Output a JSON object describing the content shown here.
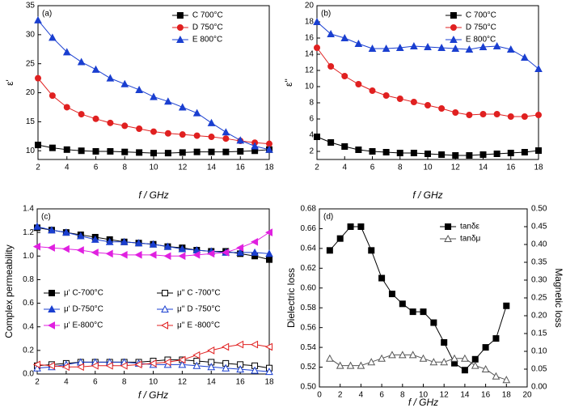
{
  "chart_data": [
    {
      "type": "line",
      "title": "(a)",
      "x_label": "f / GHz",
      "y_label": "ε'",
      "legend": "upper right",
      "x": [
        2,
        3,
        4,
        5,
        6,
        7,
        8,
        9,
        10,
        11,
        12,
        13,
        14,
        15,
        16,
        17,
        18
      ],
      "xlim": [
        2,
        18
      ],
      "xticks": [
        2,
        4,
        6,
        8,
        10,
        12,
        14,
        16,
        18
      ],
      "ylim": [
        8.5,
        35
      ],
      "yticks": [
        10,
        15,
        20,
        25,
        30,
        35
      ],
      "series": [
        {
          "name": "C  700°C",
          "color": "#000000",
          "marker": "square",
          "filled": true,
          "values": [
            11,
            10.5,
            10.2,
            10,
            9.9,
            9.9,
            9.8,
            9.7,
            9.6,
            9.6,
            9.7,
            9.8,
            9.8,
            9.8,
            9.9,
            10,
            10.2
          ]
        },
        {
          "name": "D  750°C",
          "color": "#e02020",
          "marker": "circle",
          "filled": true,
          "values": [
            22.5,
            19.5,
            17.5,
            16.3,
            15.5,
            14.8,
            14.3,
            13.8,
            13.3,
            13,
            12.8,
            12.6,
            12.4,
            12.1,
            11.7,
            11.4,
            11.2
          ]
        },
        {
          "name": "E  800°C",
          "color": "#1a3fd0",
          "marker": "triangle",
          "filled": true,
          "values": [
            32.5,
            29.5,
            27,
            25.3,
            24,
            22.5,
            21.5,
            20.5,
            19.3,
            18.5,
            17.5,
            16.5,
            14.8,
            13.2,
            11.8,
            10.8,
            10.2
          ]
        }
      ]
    },
    {
      "type": "line",
      "title": "(b)",
      "x_label": "f / GHz",
      "y_label": "ε''",
      "legend": "upper right",
      "x": [
        2,
        3,
        4,
        5,
        6,
        7,
        8,
        9,
        10,
        11,
        12,
        13,
        14,
        15,
        16,
        17,
        18
      ],
      "xlim": [
        2,
        18
      ],
      "xticks": [
        2,
        4,
        6,
        8,
        10,
        12,
        14,
        16,
        18
      ],
      "ylim": [
        1,
        20
      ],
      "yticks": [
        2,
        4,
        6,
        8,
        10,
        12,
        14,
        16,
        18,
        20
      ],
      "series": [
        {
          "name": "C  700°C",
          "color": "#000000",
          "marker": "square",
          "filled": true,
          "values": [
            3.8,
            3.1,
            2.6,
            2.2,
            2,
            1.9,
            1.8,
            1.8,
            1.7,
            1.6,
            1.5,
            1.5,
            1.6,
            1.7,
            1.8,
            1.9,
            2.1
          ]
        },
        {
          "name": "D  750°C",
          "color": "#e02020",
          "marker": "circle",
          "filled": true,
          "values": [
            14.8,
            12.5,
            11.3,
            10.3,
            9.5,
            8.9,
            8.5,
            8.1,
            7.7,
            7.3,
            6.8,
            6.5,
            6.6,
            6.6,
            6.3,
            6.3,
            6.5
          ]
        },
        {
          "name": "E  800°C",
          "color": "#1a3fd0",
          "marker": "triangle",
          "filled": true,
          "values": [
            18,
            16.5,
            16,
            15.3,
            14.7,
            14.7,
            14.8,
            15,
            14.9,
            14.8,
            14.7,
            14.6,
            14.9,
            15,
            14.6,
            13.6,
            12.2
          ]
        }
      ]
    },
    {
      "type": "line",
      "title": "(c)",
      "x_label": "f / GHz",
      "y_label": "Complex permeability",
      "legend": "lower left",
      "x": [
        2,
        3,
        4,
        5,
        6,
        7,
        8,
        9,
        10,
        11,
        12,
        13,
        14,
        15,
        16,
        17,
        18
      ],
      "xlim": [
        2,
        18
      ],
      "xticks": [
        2,
        4,
        6,
        8,
        10,
        12,
        14,
        16,
        18
      ],
      "ylim": [
        0,
        1.4
      ],
      "yticks": [
        {
          "value": 0,
          "label": "0.0"
        },
        {
          "value": 0.2,
          "label": "0.2"
        },
        {
          "value": 0.4,
          "label": "0.4"
        },
        {
          "value": 0.6,
          "label": "0.6"
        },
        {
          "value": 0.8,
          "label": "0.8"
        },
        {
          "value": 1,
          "label": "1.0"
        },
        {
          "value": 1.2,
          "label": "1.2"
        },
        {
          "value": 1.4,
          "label": "1.4"
        }
      ],
      "series": [
        {
          "name": "μ' C-700°C",
          "color": "#000000",
          "marker": "square",
          "filled": true,
          "values": [
            1.24,
            1.22,
            1.2,
            1.18,
            1.16,
            1.14,
            1.12,
            1.11,
            1.1,
            1.08,
            1.07,
            1.05,
            1.04,
            1.04,
            1.02,
            1,
            0.97
          ]
        },
        {
          "name": "μ' D-750°C",
          "color": "#1a3fd0",
          "marker": "triangle",
          "filled": true,
          "values": [
            1.25,
            1.22,
            1.2,
            1.17,
            1.14,
            1.12,
            1.12,
            1.11,
            1.1,
            1.08,
            1.06,
            1.05,
            1.04,
            1.03,
            1.03,
            1.03,
            1.02
          ]
        },
        {
          "name": "μ' E-800°C",
          "color": "#e020e0",
          "marker": "left",
          "filled": true,
          "values": [
            1.08,
            1.07,
            1.06,
            1.05,
            1.03,
            1.02,
            1.01,
            1.01,
            1.01,
            1,
            1,
            1.01,
            1.02,
            1.03,
            1.07,
            1.12,
            1.2
          ]
        },
        {
          "name": "μ'' C -700°C",
          "color": "#000000",
          "marker": "square",
          "filled": false,
          "values": [
            0.07,
            0.08,
            0.09,
            0.1,
            0.1,
            0.1,
            0.1,
            0.1,
            0.11,
            0.12,
            0.12,
            0.11,
            0.1,
            0.09,
            0.08,
            0.07,
            0.05
          ]
        },
        {
          "name": "μ'' D -750°C",
          "color": "#1a3fd0",
          "marker": "triangle",
          "filled": false,
          "values": [
            0.05,
            0.06,
            0.08,
            0.1,
            0.1,
            0.1,
            0.1,
            0.09,
            0.08,
            0.08,
            0.08,
            0.07,
            0.06,
            0.05,
            0.04,
            0.03,
            0.02
          ]
        },
        {
          "name": "μ'' E -800°C",
          "color": "#e02020",
          "marker": "left",
          "filled": false,
          "values": [
            0.08,
            0.07,
            0.06,
            0.06,
            0.07,
            0.07,
            0.07,
            0.08,
            0.09,
            0.1,
            0.12,
            0.16,
            0.2,
            0.23,
            0.25,
            0.25,
            0.23
          ]
        }
      ]
    },
    {
      "type": "line",
      "title": "(d)",
      "x_label": "f / GHz",
      "y_label": "Dielectric loss",
      "y2_label": "Magnetic loss",
      "legend": "upper right",
      "x": [
        1,
        2,
        3,
        4,
        5,
        6,
        7,
        8,
        9,
        10,
        11,
        12,
        13,
        14,
        15,
        16,
        17,
        18
      ],
      "xlim": [
        0,
        20
      ],
      "xticks": [
        0,
        2,
        4,
        6,
        8,
        10,
        12,
        14,
        16,
        18,
        20
      ],
      "ylim": [
        0.5,
        0.68
      ],
      "yticks": [
        {
          "value": 0.5,
          "label": "0.50"
        },
        {
          "value": 0.52,
          "label": "0.52"
        },
        {
          "value": 0.54,
          "label": "0.54"
        },
        {
          "value": 0.56,
          "label": "0.56"
        },
        {
          "value": 0.58,
          "label": "0.58"
        },
        {
          "value": 0.6,
          "label": "0.60"
        },
        {
          "value": 0.62,
          "label": "0.62"
        },
        {
          "value": 0.64,
          "label": "0.64"
        },
        {
          "value": 0.66,
          "label": "0.66"
        },
        {
          "value": 0.68,
          "label": "0.68"
        }
      ],
      "y2lim": [
        0,
        0.5
      ],
      "y2ticks": [
        {
          "value": 0,
          "label": "0.00"
        },
        {
          "value": 0.05,
          "label": "0.05"
        },
        {
          "value": 0.1,
          "label": "0.10"
        },
        {
          "value": 0.15,
          "label": "0.15"
        },
        {
          "value": 0.2,
          "label": "0.20"
        },
        {
          "value": 0.25,
          "label": "0.25"
        },
        {
          "value": 0.3,
          "label": "0.30"
        },
        {
          "value": 0.35,
          "label": "0.35"
        },
        {
          "value": 0.4,
          "label": "0.40"
        },
        {
          "value": 0.45,
          "label": "0.45"
        },
        {
          "value": 0.5,
          "label": "0.50"
        }
      ],
      "series": [
        {
          "name": "tanδε",
          "color": "#000000",
          "marker": "square",
          "filled": true,
          "values": [
            0.638,
            0.65,
            0.662,
            0.662,
            0.638,
            0.61,
            0.594,
            0.584,
            0.576,
            0.576,
            0.565,
            0.545,
            0.524,
            0.517,
            0.528,
            0.54,
            0.549,
            0.582
          ]
        },
        {
          "name": "tanδμ",
          "color": "#555555",
          "marker": "triangle",
          "filled": false,
          "axis": "y2",
          "values": [
            0.08,
            0.06,
            0.06,
            0.06,
            0.07,
            0.08,
            0.09,
            0.09,
            0.09,
            0.08,
            0.07,
            0.07,
            0.08,
            0.08,
            0.06,
            0.05,
            0.03,
            0.02
          ]
        }
      ]
    }
  ]
}
